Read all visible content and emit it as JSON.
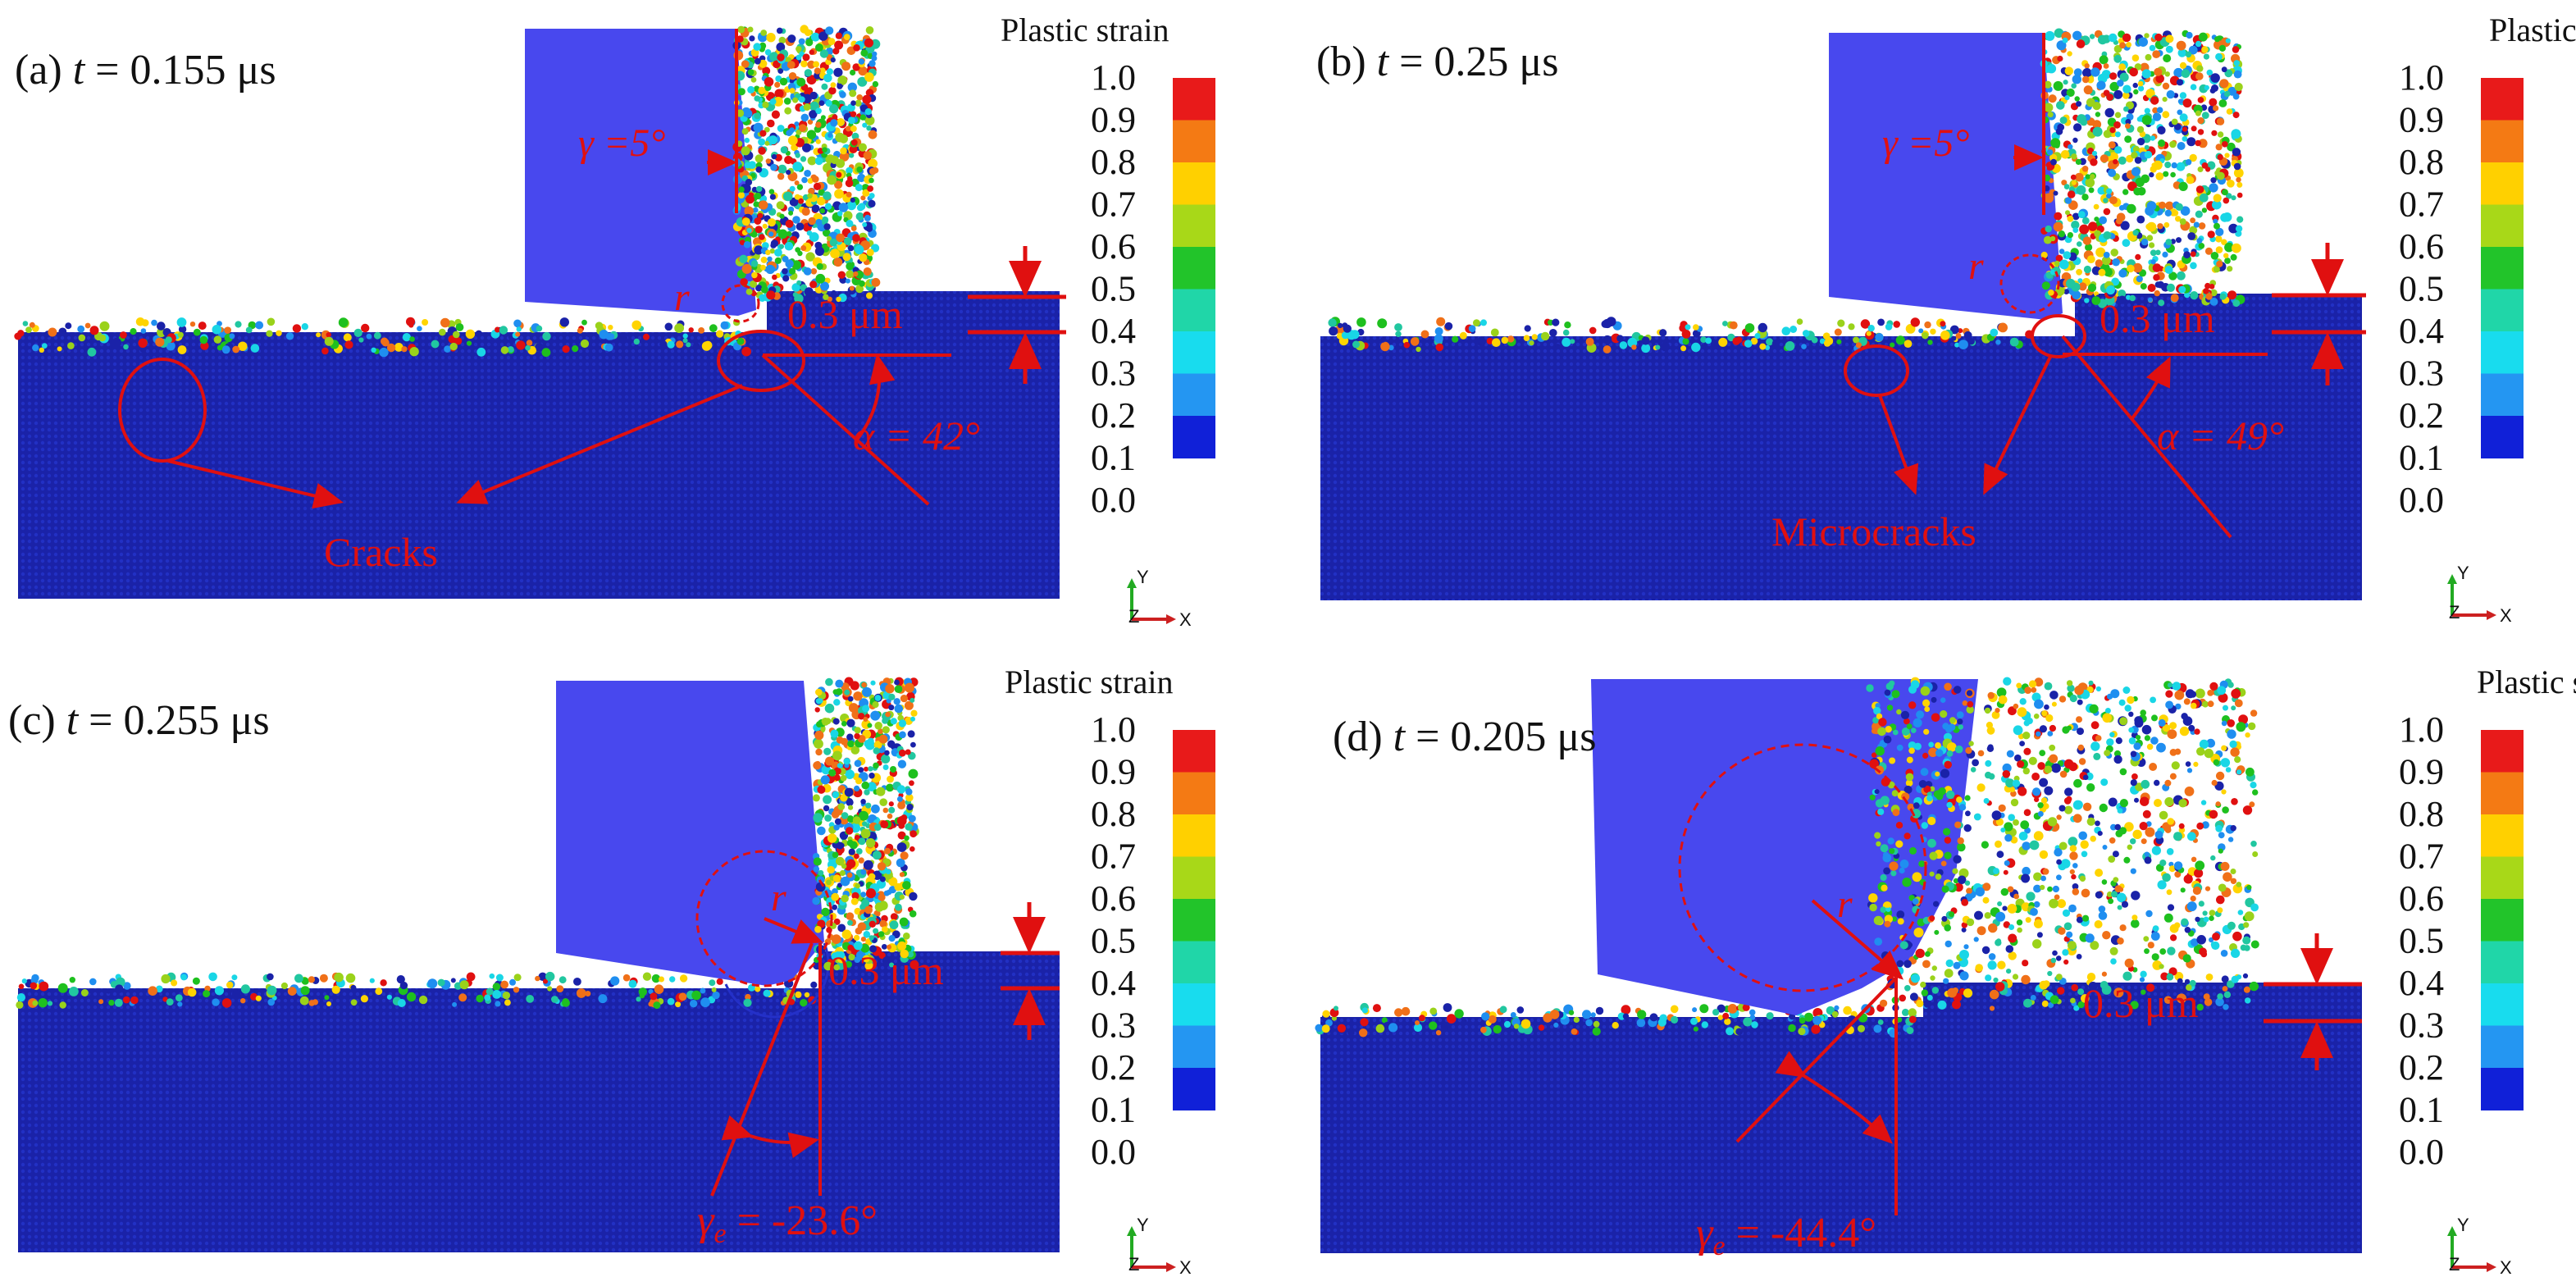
{
  "colors": {
    "workpiece": "#1a22a8",
    "tool": "#4848ee",
    "annotation": "#e01010",
    "axis_y": "#22aa22",
    "axis_x": "#cc2020",
    "axis_z": "#2222aa",
    "particles": [
      "#e01010",
      "#f07018",
      "#ffd400",
      "#9ad21a",
      "#1ec01e",
      "#21c7a0",
      "#19d6e6",
      "#1f8ef0",
      "#1a22a8"
    ]
  },
  "colorbar": {
    "title": "Plastic strain",
    "ticks": [
      "1.0",
      "0.9",
      "0.8",
      "0.7",
      "0.6",
      "0.5",
      "0.4",
      "0.3",
      "0.2",
      "0.1",
      "0.0"
    ],
    "colors": [
      "#e81a1a",
      "#f47a14",
      "#ffd000",
      "#a8d818",
      "#22c42a",
      "#20d6a8",
      "#18dcee",
      "#2496f2",
      "#1020d8"
    ]
  },
  "axes_triad": {
    "y": "Y",
    "z": "Z",
    "x": "X"
  },
  "panels": [
    {
      "label_prefix": "(a) ",
      "label_var": "t",
      "label_value": " = 0.155 μs",
      "rake_angle": "γ =5°",
      "radius": "r",
      "depth": "0.3 μm",
      "angle": "α = 42°",
      "feature": "Cracks"
    },
    {
      "label_prefix": "(b) ",
      "label_var": "t",
      "label_value": " = 0.25 μs",
      "rake_angle": "γ =5°",
      "radius": "r",
      "depth": "0.3 μm",
      "angle": "α = 49°",
      "feature": "Microcracks"
    },
    {
      "label_prefix": "(c) ",
      "label_var": "t",
      "label_value": " = 0.255 μs",
      "radius": "r",
      "depth": "0.3 μm",
      "effective_rake_angle": "γ e = -23.6°"
    },
    {
      "label_prefix": "(d) ",
      "label_var": "t",
      "label_value": " = 0.205 μs",
      "radius": "r",
      "depth": "0.3 μm",
      "effective_rake_angle": "γ e = -44.4°"
    }
  ]
}
